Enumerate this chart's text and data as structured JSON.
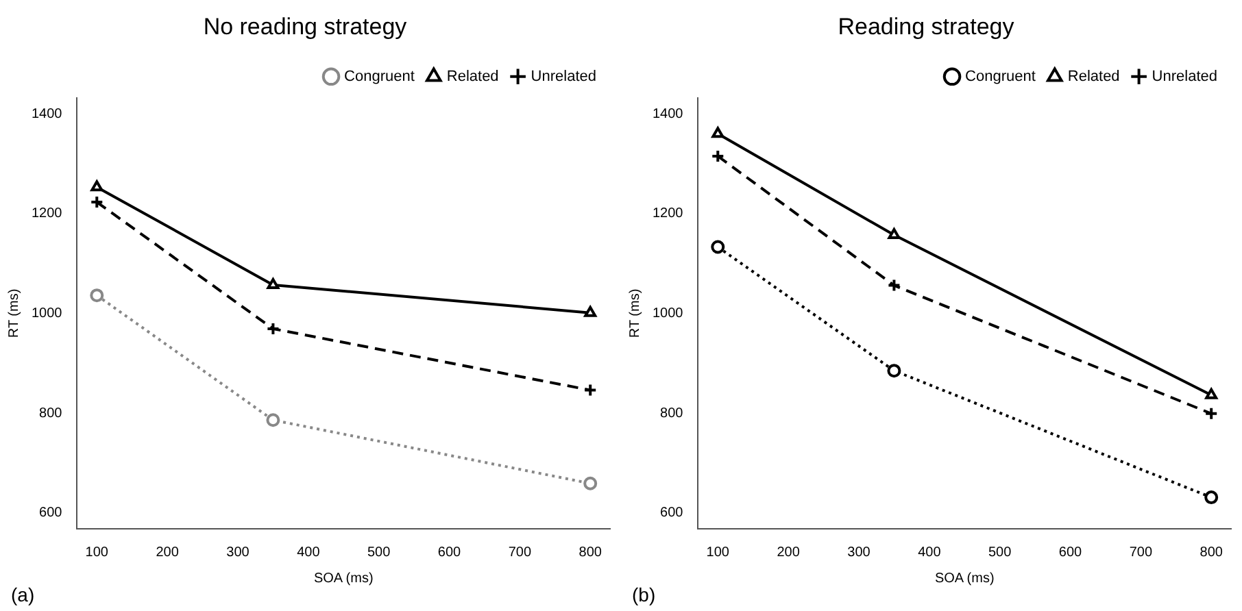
{
  "chart_data": [
    {
      "type": "line",
      "title": "No reading strategy",
      "xlabel": "SOA (ms)",
      "ylabel": "RT (ms)",
      "x": [
        100,
        350,
        800
      ],
      "xlim": [
        72,
        828
      ],
      "ylim": [
        568,
        1432
      ],
      "xticks": [
        100,
        200,
        300,
        400,
        500,
        600,
        700,
        800
      ],
      "yticks": [
        600,
        800,
        1000,
        1200,
        1400
      ],
      "grid": false,
      "legend": "top right",
      "annotations": [
        "(a)"
      ],
      "series": [
        {
          "name": "Congruent",
          "color": "#888888",
          "values": [
            1036,
            786,
            659
          ],
          "marker": "circle",
          "line_style": "dotted"
        },
        {
          "name": "Related",
          "color": "#000000",
          "values": [
            1253,
            1057,
            1001
          ],
          "marker": "triangle",
          "line_style": "solid"
        },
        {
          "name": "Unrelated",
          "color": "#000000",
          "values": [
            1223,
            969,
            846
          ],
          "marker": "cross",
          "line_style": "dashed"
        }
      ]
    },
    {
      "type": "line",
      "title": "Reading strategy",
      "xlabel": "SOA (ms)",
      "ylabel": "RT (ms)",
      "x": [
        100,
        350,
        800
      ],
      "xlim": [
        72,
        828
      ],
      "ylim": [
        568,
        1432
      ],
      "xticks": [
        100,
        200,
        300,
        400,
        500,
        600,
        700,
        800
      ],
      "yticks": [
        600,
        800,
        1000,
        1200,
        1400
      ],
      "grid": false,
      "legend": "top right",
      "annotations": [
        "(b)"
      ],
      "series": [
        {
          "name": "Congruent",
          "color": "#000000",
          "values": [
            1133,
            885,
            631
          ],
          "marker": "circle",
          "line_style": "dotted"
        },
        {
          "name": "Related",
          "color": "#000000",
          "values": [
            1360,
            1157,
            836
          ],
          "marker": "triangle",
          "line_style": "solid"
        },
        {
          "name": "Unrelated",
          "color": "#000000",
          "values": [
            1315,
            1056,
            799
          ],
          "marker": "cross",
          "line_style": "dashed"
        }
      ]
    }
  ]
}
